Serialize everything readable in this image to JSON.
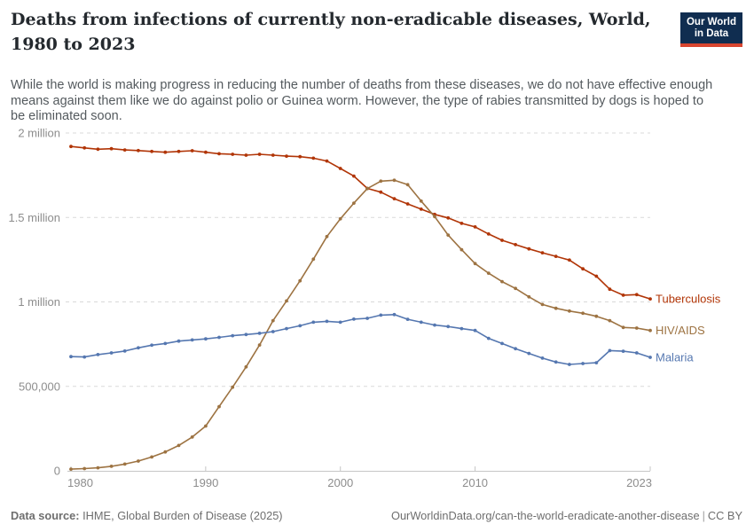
{
  "header": {
    "title_line1": "Deaths from infections of currently non-eradicable diseases, World,",
    "title_line2": "1980 to 2023",
    "subtitle_lines": [
      "While the world is making progress in reducing the number of deaths from these diseases, we do not have effective enough",
      "means against them like we do against polio or Guinea worm. However, the type of rabies transmitted by dogs is hoped to",
      "be eliminated soon."
    ]
  },
  "logo": {
    "line1": "Our World",
    "line2": "in Data",
    "bg_color": "#102d50",
    "bar_color": "#d8452f"
  },
  "chart_data": {
    "type": "line",
    "title": "Deaths from infections of currently non-eradicable diseases, World, 1980 to 2023",
    "xlabel": "",
    "ylabel": "",
    "unit": "deaths per year, in millions",
    "grid": true,
    "legend_position": "right-end-labels",
    "x_range": [
      1980,
      2023
    ],
    "y_range_millions": [
      0,
      2
    ],
    "y_ticks": [
      {
        "value": 0,
        "label": "0"
      },
      {
        "value": 0.5,
        "label": "500,000"
      },
      {
        "value": 1,
        "label": "1 million"
      },
      {
        "value": 1.5,
        "label": "1.5 million"
      },
      {
        "value": 2,
        "label": "2 million"
      }
    ],
    "x_ticks": [
      {
        "year": 1980,
        "label": "1980"
      },
      {
        "year": 1990,
        "label": "1990"
      },
      {
        "year": 2000,
        "label": "2000"
      },
      {
        "year": 2010,
        "label": "2010"
      },
      {
        "year": 2023,
        "label": "2023"
      }
    ],
    "x": [
      1980,
      1981,
      1982,
      1983,
      1984,
      1985,
      1986,
      1987,
      1988,
      1989,
      1990,
      1991,
      1992,
      1993,
      1994,
      1995,
      1996,
      1997,
      1998,
      1999,
      2000,
      2001,
      2002,
      2003,
      2004,
      2005,
      2006,
      2007,
      2008,
      2009,
      2010,
      2011,
      2012,
      2013,
      2014,
      2015,
      2016,
      2017,
      2018,
      2019,
      2020,
      2021,
      2022,
      2023
    ],
    "series": [
      {
        "name": "Tuberculosis",
        "color": "#b13507",
        "values": [
          1.92,
          1.912,
          1.904,
          1.907,
          1.9,
          1.896,
          1.891,
          1.886,
          1.891,
          1.895,
          1.886,
          1.877,
          1.874,
          1.869,
          1.874,
          1.869,
          1.863,
          1.86,
          1.851,
          1.834,
          1.79,
          1.745,
          1.672,
          1.65,
          1.611,
          1.58,
          1.549,
          1.518,
          1.497,
          1.465,
          1.444,
          1.402,
          1.365,
          1.339,
          1.314,
          1.291,
          1.27,
          1.248,
          1.196,
          1.152,
          1.075,
          1.04,
          1.043,
          1.018
        ]
      },
      {
        "name": "HIV/AIDS",
        "color": "#9d7342",
        "values": [
          0.01,
          0.013,
          0.018,
          0.027,
          0.04,
          0.058,
          0.082,
          0.112,
          0.15,
          0.2,
          0.265,
          0.38,
          0.495,
          0.615,
          0.745,
          0.889,
          1.006,
          1.125,
          1.253,
          1.387,
          1.492,
          1.585,
          1.671,
          1.715,
          1.72,
          1.694,
          1.597,
          1.505,
          1.396,
          1.309,
          1.227,
          1.17,
          1.12,
          1.08,
          1.03,
          0.985,
          0.962,
          0.946,
          0.933,
          0.915,
          0.889,
          0.849,
          0.845,
          0.831
        ]
      },
      {
        "name": "Malaria",
        "color": "#5577b0",
        "values": [
          0.676,
          0.674,
          0.688,
          0.698,
          0.709,
          0.728,
          0.744,
          0.754,
          0.768,
          0.775,
          0.781,
          0.79,
          0.8,
          0.807,
          0.814,
          0.824,
          0.842,
          0.859,
          0.88,
          0.885,
          0.88,
          0.898,
          0.903,
          0.922,
          0.925,
          0.897,
          0.88,
          0.863,
          0.854,
          0.842,
          0.831,
          0.784,
          0.754,
          0.723,
          0.695,
          0.667,
          0.644,
          0.63,
          0.635,
          0.64,
          0.712,
          0.708,
          0.698,
          0.672
        ]
      }
    ]
  },
  "footer": {
    "source_label": "Data source:",
    "source": "IHME, Global Burden of Disease (2025)",
    "link": "OurWorldinData.org/can-the-world-eradicate-another-disease",
    "separator": "|",
    "license": "CC BY"
  }
}
